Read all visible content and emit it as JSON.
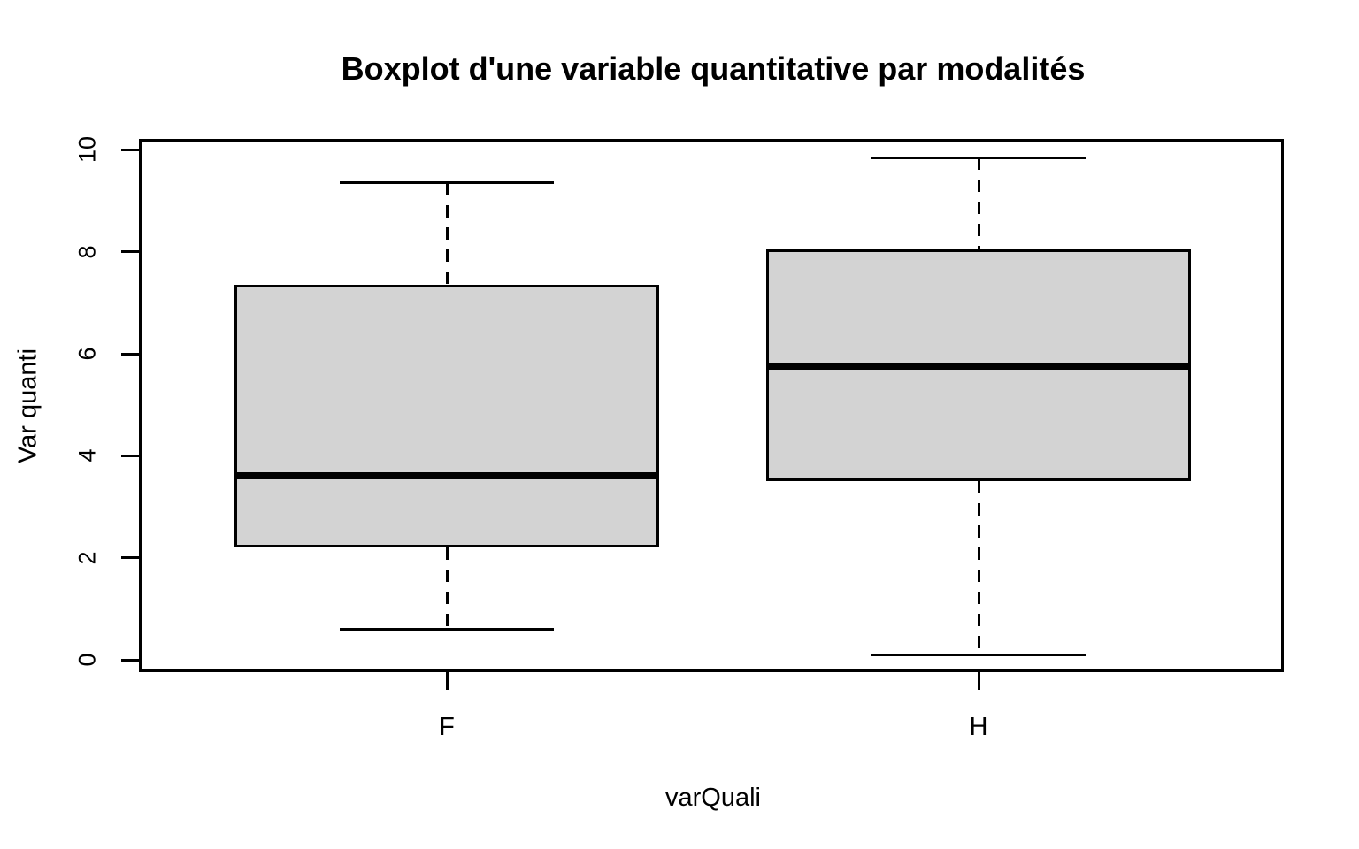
{
  "chart_data": {
    "type": "boxplot",
    "title": "Boxplot d'une variable quantitative par modalités",
    "xlabel": "varQuali",
    "ylabel": "Var quanti",
    "categories": [
      "F",
      "H"
    ],
    "yticks": [
      0,
      2,
      4,
      6,
      8,
      10
    ],
    "ylim": [
      0,
      10
    ],
    "grid": false,
    "legend": "none",
    "series": [
      {
        "name": "F",
        "whisker_low": 0.6,
        "q1": 2.2,
        "median": 3.6,
        "q3": 7.35,
        "whisker_high": 9.35,
        "outliers": []
      },
      {
        "name": "H",
        "whisker_low": 0.1,
        "q1": 3.5,
        "median": 5.75,
        "q3": 8.05,
        "whisker_high": 9.85,
        "outliers": []
      }
    ],
    "colors": {
      "box_fill": "#d3d3d3",
      "line": "#000000",
      "background": "#ffffff"
    }
  }
}
